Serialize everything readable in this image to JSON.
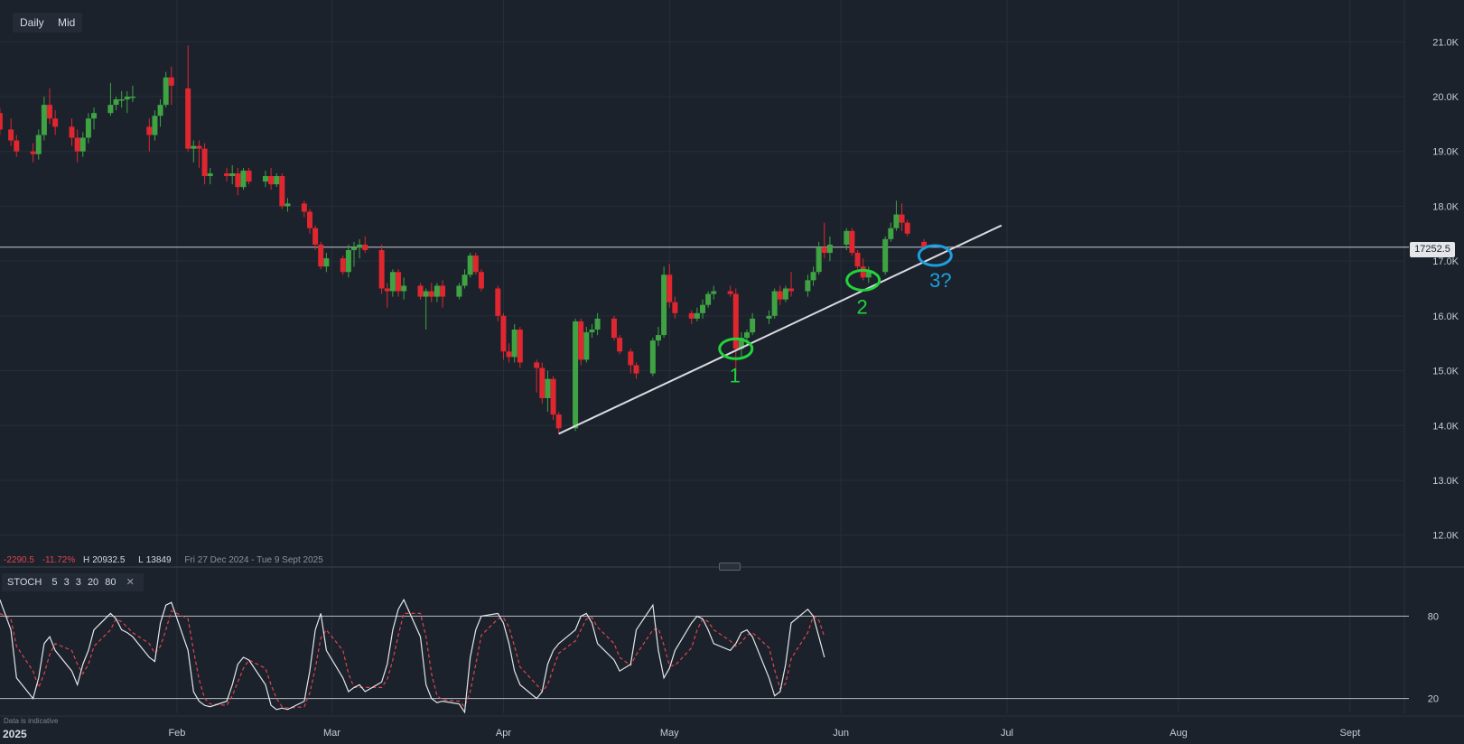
{
  "toolbar": {
    "timeframe_label": "Daily",
    "mode_label": "Mid"
  },
  "stats": {
    "change": "-2290.5",
    "change_pct": "-11.72%",
    "high_label": "H",
    "high_value": "20932.5",
    "low_label": "L",
    "low_value": "13849",
    "date_range": "Fri 27 Dec 2024 - Tue 9 Sept 2025"
  },
  "indicator": {
    "name": "STOCH",
    "params": [
      "5",
      "3",
      "3",
      "20",
      "80"
    ],
    "close_icon": "close-icon"
  },
  "disclaimer": "Data is indicative",
  "current_price": "17252.5",
  "year_label": "2025",
  "colors": {
    "up": "#3fa344",
    "down": "#e0262f",
    "trendline": "#d9dce0",
    "circle_green": "#22d33b",
    "circle_blue": "#1c9fe0",
    "k_line": "#e4e6e9",
    "d_line": "#e0444d"
  },
  "chart_data": [
    {
      "type": "candlestick",
      "ylim": [
        11700,
        21300
      ],
      "y_ticks": [
        "21.0K",
        "20.0K",
        "19.0K",
        "18.0K",
        "17.0K",
        "16.0K",
        "15.0K",
        "14.0K",
        "13.0K",
        "12.0K"
      ],
      "y_tick_values": [
        21000,
        20000,
        19000,
        18000,
        17000,
        16000,
        15000,
        14000,
        13000,
        12000
      ],
      "x_ticks": [
        "Feb",
        "Mar",
        "Apr",
        "May",
        "Jun",
        "Jul",
        "Aug",
        "Sept"
      ],
      "x_tick_dates": [
        "2025-02-01",
        "2025-03-01",
        "2025-04-01",
        "2025-05-01",
        "2025-06-01",
        "2025-07-01",
        "2025-08-01",
        "2025-09-01"
      ],
      "x_range": [
        "2024-12-31",
        "2025-09-11"
      ],
      "last_price": 17252.5,
      "candles": [
        [
          "2024-12-31",
          19700,
          19800,
          19300,
          19400
        ],
        [
          "2025-01-02",
          19400,
          19600,
          19100,
          19200
        ],
        [
          "2025-01-03",
          19200,
          19300,
          18900,
          19000
        ],
        [
          "2025-01-06",
          19000,
          19150,
          18800,
          18950
        ],
        [
          "2025-01-07",
          18950,
          19400,
          18850,
          19300
        ],
        [
          "2025-01-08",
          19300,
          20000,
          19200,
          19850
        ],
        [
          "2025-01-09",
          19850,
          20150,
          19500,
          19600
        ],
        [
          "2025-01-10",
          19600,
          19750,
          19300,
          19450
        ],
        [
          "2025-01-13",
          19450,
          19600,
          19100,
          19250
        ],
        [
          "2025-01-14",
          19250,
          19400,
          18800,
          19000
        ],
        [
          "2025-01-15",
          19000,
          19350,
          18900,
          19250
        ],
        [
          "2025-01-16",
          19250,
          19700,
          19150,
          19600
        ],
        [
          "2025-01-17",
          19600,
          19800,
          19400,
          19700
        ],
        [
          "2025-01-20",
          19700,
          20250,
          19650,
          19850
        ],
        [
          "2025-01-21",
          19850,
          20000,
          19750,
          19950
        ],
        [
          "2025-01-22",
          19950,
          20100,
          19800,
          19950
        ],
        [
          "2025-01-23",
          19950,
          20100,
          19700,
          20000
        ],
        [
          "2025-01-24",
          20000,
          20200,
          19900,
          20000
        ],
        [
          "2025-01-27",
          19450,
          19600,
          19000,
          19300
        ],
        [
          "2025-01-28",
          19300,
          19750,
          19200,
          19650
        ],
        [
          "2025-01-29",
          19650,
          19950,
          19450,
          19850
        ],
        [
          "2025-01-30",
          19850,
          20450,
          19800,
          20350
        ],
        [
          "2025-01-31",
          20350,
          20550,
          19850,
          20200
        ],
        [
          "2025-02-03",
          20150,
          20932.5,
          19000,
          19050
        ],
        [
          "2025-02-04",
          19050,
          19200,
          18800,
          19100
        ],
        [
          "2025-02-05",
          19100,
          19200,
          18700,
          19050
        ],
        [
          "2025-02-06",
          19050,
          19150,
          18400,
          18550
        ],
        [
          "2025-02-07",
          18550,
          18700,
          18400,
          18600
        ],
        [
          "2025-02-10",
          18600,
          18700,
          18450,
          18550
        ],
        [
          "2025-02-11",
          18550,
          18750,
          18400,
          18600
        ],
        [
          "2025-02-12",
          18600,
          18700,
          18200,
          18350
        ],
        [
          "2025-02-13",
          18350,
          18700,
          18300,
          18650
        ],
        [
          "2025-02-14",
          18650,
          18700,
          18400,
          18450
        ],
        [
          "2025-02-17",
          18450,
          18650,
          18350,
          18550
        ],
        [
          "2025-02-18",
          18550,
          18700,
          18300,
          18400
        ],
        [
          "2025-02-19",
          18400,
          18600,
          18350,
          18550
        ],
        [
          "2025-02-20",
          18550,
          18600,
          17950,
          18000
        ],
        [
          "2025-02-21",
          18000,
          18150,
          17900,
          18050
        ],
        [
          "2025-02-24",
          18050,
          18100,
          17800,
          17900
        ],
        [
          "2025-02-25",
          17900,
          17950,
          17500,
          17600
        ],
        [
          "2025-02-26",
          17600,
          17650,
          17200,
          17300
        ],
        [
          "2025-02-27",
          17300,
          17350,
          16850,
          16900
        ],
        [
          "2025-02-28",
          16900,
          17150,
          16800,
          17050
        ],
        [
          "2025-03-03",
          17050,
          17100,
          16750,
          16800
        ],
        [
          "2025-03-04",
          16800,
          17300,
          16700,
          17200
        ],
        [
          "2025-03-05",
          17200,
          17350,
          16900,
          17250
        ],
        [
          "2025-03-06",
          17250,
          17400,
          17050,
          17300
        ],
        [
          "2025-03-07",
          17300,
          17450,
          17150,
          17200
        ],
        [
          "2025-03-10",
          17200,
          17300,
          16400,
          16500
        ],
        [
          "2025-03-11",
          16500,
          16600,
          16150,
          16450
        ],
        [
          "2025-03-12",
          16450,
          16850,
          16350,
          16800
        ],
        [
          "2025-03-13",
          16800,
          16850,
          16350,
          16450
        ],
        [
          "2025-03-14",
          16450,
          16700,
          16300,
          16550
        ],
        [
          "2025-03-17",
          16550,
          16600,
          16300,
          16350
        ],
        [
          "2025-03-18",
          16350,
          16500,
          15750,
          16450
        ],
        [
          "2025-03-19",
          16450,
          16600,
          16250,
          16350
        ],
        [
          "2025-03-20",
          16350,
          16600,
          16250,
          16550
        ],
        [
          "2025-03-21",
          16550,
          16650,
          16150,
          16350
        ],
        [
          "2025-03-24",
          16350,
          16600,
          16300,
          16550
        ],
        [
          "2025-03-25",
          16550,
          16850,
          16500,
          16750
        ],
        [
          "2025-03-26",
          16750,
          17150,
          16700,
          17100
        ],
        [
          "2025-03-27",
          17100,
          17150,
          16750,
          16800
        ],
        [
          "2025-03-28",
          16800,
          16850,
          16450,
          16500
        ],
        [
          "2025-03-31",
          16500,
          16550,
          15900,
          16000
        ],
        [
          "2025-04-01",
          16000,
          16050,
          15200,
          15350
        ],
        [
          "2025-04-02",
          15350,
          15500,
          15150,
          15250
        ],
        [
          "2025-04-03",
          15250,
          15850,
          15150,
          15750
        ],
        [
          "2025-04-04",
          15750,
          15800,
          15050,
          15150
        ],
        [
          "2025-04-07",
          15150,
          15200,
          14600,
          15050
        ],
        [
          "2025-04-08",
          15050,
          15150,
          14400,
          14500
        ],
        [
          "2025-04-09",
          14500,
          15000,
          14250,
          14850
        ],
        [
          "2025-04-10",
          14850,
          14900,
          14100,
          14200
        ],
        [
          "2025-04-11",
          14200,
          14250,
          13849,
          13950
        ],
        [
          "2025-04-14",
          13950,
          15950,
          13900,
          15900
        ],
        [
          "2025-04-15",
          15900,
          15950,
          15100,
          15200
        ],
        [
          "2025-04-16",
          15200,
          15800,
          15150,
          15700
        ],
        [
          "2025-04-17",
          15700,
          15850,
          15600,
          15750
        ],
        [
          "2025-04-18",
          15750,
          16050,
          15650,
          15950
        ],
        [
          "2025-04-21",
          15950,
          16000,
          15550,
          15600
        ],
        [
          "2025-04-22",
          15600,
          15650,
          15300,
          15350
        ],
        [
          "2025-04-24",
          15350,
          15400,
          14950,
          15100
        ],
        [
          "2025-04-25",
          15100,
          15150,
          14850,
          14950
        ],
        [
          "2025-04-28",
          14950,
          15600,
          14900,
          15550
        ],
        [
          "2025-04-29",
          15550,
          15800,
          15450,
          15650
        ],
        [
          "2025-04-30",
          15650,
          16900,
          15600,
          16750
        ],
        [
          "2025-05-01",
          16750,
          16950,
          16150,
          16250
        ],
        [
          "2025-05-02",
          16250,
          16350,
          15950,
          16050
        ],
        [
          "2025-05-05",
          16050,
          16100,
          15850,
          15950
        ],
        [
          "2025-05-06",
          15950,
          16150,
          15900,
          16050
        ],
        [
          "2025-05-07",
          16050,
          16300,
          15950,
          16200
        ],
        [
          "2025-05-08",
          16200,
          16450,
          16150,
          16400
        ],
        [
          "2025-05-09",
          16400,
          16550,
          16300,
          16450
        ],
        [
          "2025-05-12",
          16450,
          16550,
          16350,
          16400
        ],
        [
          "2025-05-13",
          16400,
          16500,
          14900,
          15400
        ],
        [
          "2025-05-14",
          15400,
          15700,
          15250,
          15600
        ],
        [
          "2025-05-15",
          15600,
          15750,
          15450,
          15700
        ],
        [
          "2025-05-16",
          15700,
          16050,
          15650,
          15950
        ],
        [
          "2025-05-19",
          15950,
          16100,
          15850,
          16000
        ],
        [
          "2025-05-20",
          16000,
          16500,
          15950,
          16450
        ],
        [
          "2025-05-21",
          16450,
          16550,
          16200,
          16300
        ],
        [
          "2025-05-22",
          16300,
          16550,
          16250,
          16500
        ],
        [
          "2025-05-23",
          16500,
          16800,
          16350,
          16450
        ],
        [
          "2025-05-26",
          16450,
          16750,
          16350,
          16650
        ],
        [
          "2025-05-27",
          16650,
          16900,
          16550,
          16800
        ],
        [
          "2025-05-28",
          16800,
          17350,
          16750,
          17250
        ],
        [
          "2025-05-29",
          17250,
          17700,
          17050,
          17150
        ],
        [
          "2025-05-30",
          17150,
          17450,
          17000,
          17300
        ],
        [
          "2025-06-02",
          17300,
          17600,
          17200,
          17550
        ],
        [
          "2025-06-03",
          17550,
          17600,
          17100,
          17150
        ],
        [
          "2025-06-04",
          17150,
          17200,
          16850,
          16900
        ],
        [
          "2025-06-05",
          16900,
          17050,
          16650,
          16700
        ],
        [
          "2025-06-06",
          16700,
          16900,
          16600,
          16800
        ],
        [
          "2025-06-09",
          16800,
          17450,
          16750,
          17400
        ],
        [
          "2025-06-10",
          17400,
          17700,
          17350,
          17600
        ],
        [
          "2025-06-11",
          17600,
          18100,
          17550,
          17850
        ],
        [
          "2025-06-12",
          17850,
          18050,
          17550,
          17700
        ],
        [
          "2025-06-13",
          17700,
          17750,
          17450,
          17500
        ],
        [
          "2025-06-16",
          17350,
          17400,
          17200,
          17252.5
        ]
      ]
    },
    {
      "type": "line",
      "name": "STOCH 5 3 3 20 80",
      "ylim": [
        0,
        100
      ],
      "y_ticks": [
        "80",
        "20"
      ],
      "y_tick_values": [
        80,
        20
      ],
      "k": [
        92,
        70,
        35,
        20,
        35,
        60,
        65,
        55,
        40,
        30,
        45,
        55,
        70,
        82,
        78,
        70,
        68,
        65,
        50,
        47,
        75,
        88,
        90,
        55,
        25,
        18,
        15,
        14,
        18,
        30,
        45,
        50,
        48,
        30,
        15,
        12,
        13,
        12,
        18,
        40,
        70,
        82,
        55,
        35,
        25,
        28,
        30,
        25,
        32,
        45,
        70,
        85,
        92,
        65,
        30,
        20,
        17,
        18,
        16,
        10,
        50,
        70,
        80,
        82,
        75,
        60,
        40,
        30,
        20,
        25,
        45,
        55,
        60,
        70,
        80,
        82,
        75,
        60,
        48,
        40,
        45,
        70,
        88,
        55,
        35,
        42,
        55,
        75,
        80,
        78,
        70,
        60,
        55,
        60,
        68,
        70,
        65,
        35,
        22,
        25,
        45,
        75,
        85,
        80,
        65,
        50
      ],
      "d": [
        82,
        78,
        58,
        40,
        28,
        38,
        52,
        60,
        55,
        45,
        38,
        45,
        58,
        70,
        78,
        76,
        72,
        68,
        60,
        53,
        58,
        70,
        84,
        78,
        55,
        34,
        20,
        16,
        15,
        22,
        32,
        42,
        48,
        42,
        30,
        20,
        14,
        13,
        14,
        24,
        42,
        64,
        70,
        55,
        38,
        28,
        28,
        28,
        28,
        34,
        48,
        66,
        82,
        82,
        65,
        38,
        22,
        19,
        18,
        14,
        25,
        45,
        66,
        78,
        79,
        72,
        58,
        43,
        30,
        25,
        30,
        42,
        53,
        62,
        70,
        78,
        79,
        72,
        60,
        50,
        44,
        52,
        70,
        71,
        59,
        44,
        44,
        57,
        70,
        78,
        76,
        70,
        62,
        58,
        61,
        66,
        68,
        57,
        41,
        27,
        31,
        49,
        68,
        80,
        77,
        65
      ]
    }
  ],
  "annotations": [
    {
      "label": "1",
      "color": "green"
    },
    {
      "label": "2",
      "color": "green"
    },
    {
      "label": "3?",
      "color": "blue"
    }
  ]
}
